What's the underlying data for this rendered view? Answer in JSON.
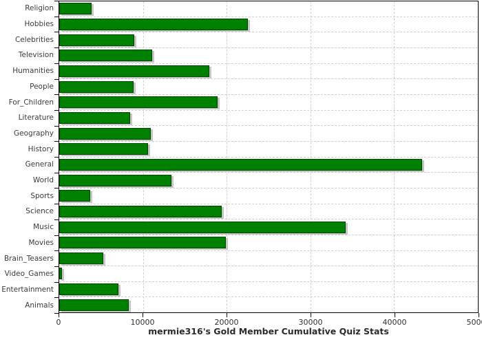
{
  "chart_data": {
    "type": "bar",
    "orientation": "horizontal",
    "title": "mermie316's Gold Member Cumulative Quiz Stats",
    "xlabel": "",
    "ylabel": "",
    "categories": [
      "Religion",
      "Hobbies",
      "Celebrities",
      "Television",
      "Humanities",
      "People",
      "For_Children",
      "Literature",
      "Geography",
      "History",
      "General",
      "World",
      "Sports",
      "Science",
      "Music",
      "Movies",
      "Brain_Teasers",
      "Video_Games",
      "Entertainment",
      "Animals"
    ],
    "values": [
      3900,
      22500,
      9000,
      11100,
      17900,
      8900,
      18900,
      8500,
      10900,
      10600,
      43300,
      13400,
      3700,
      19400,
      34200,
      19900,
      5300,
      350,
      7100,
      8300
    ],
    "xlim": [
      0,
      50000
    ],
    "x_ticks": [
      0,
      10000,
      20000,
      30000,
      40000,
      50000
    ],
    "grid": "dashed",
    "legend": "none",
    "colors": {
      "bar": "#008000",
      "bar_shadow": "#c6c6c6",
      "grid": "#cfcfcf",
      "axis": "#000000",
      "label_text": "#3a3a3a",
      "background": "#ffffff"
    }
  }
}
